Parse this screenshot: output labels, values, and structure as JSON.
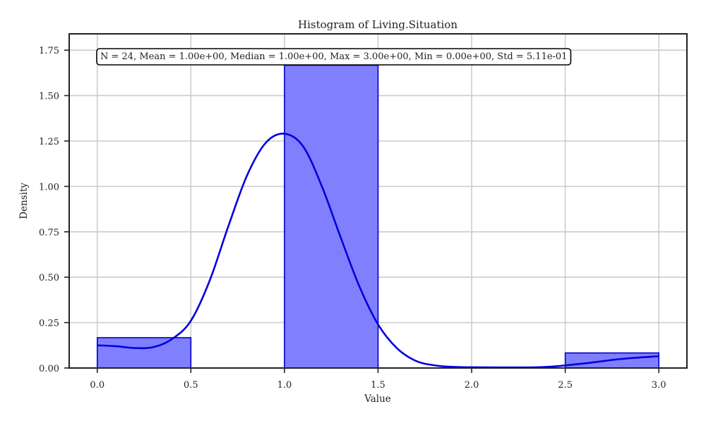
{
  "chart_data": {
    "type": "bar",
    "title": "Histogram of Living.Situation",
    "xlabel": "Value",
    "ylabel": "Density",
    "xlim": [
      -0.15,
      3.15
    ],
    "ylim": [
      0,
      1.84
    ],
    "x_ticks": [
      "0.0",
      "0.5",
      "1.0",
      "1.5",
      "2.0",
      "2.5",
      "3.0"
    ],
    "y_ticks": [
      "0.00",
      "0.25",
      "0.50",
      "0.75",
      "1.00",
      "1.25",
      "1.50",
      "1.75"
    ],
    "grid": true,
    "bins": [
      {
        "start": 0.0,
        "end": 0.5,
        "density": 0.167
      },
      {
        "start": 1.0,
        "end": 1.5,
        "density": 1.667
      },
      {
        "start": 2.5,
        "end": 3.0,
        "density": 0.083
      }
    ],
    "kde": {
      "x": [
        0.0,
        0.1,
        0.2,
        0.3,
        0.4,
        0.5,
        0.6,
        0.7,
        0.8,
        0.9,
        1.0,
        1.1,
        1.2,
        1.3,
        1.4,
        1.5,
        1.6,
        1.7,
        1.8,
        1.9,
        2.0,
        2.2,
        2.4,
        2.6,
        2.8,
        3.0
      ],
      "y": [
        0.125,
        0.12,
        0.11,
        0.115,
        0.16,
        0.26,
        0.48,
        0.78,
        1.06,
        1.24,
        1.29,
        1.22,
        1.0,
        0.72,
        0.45,
        0.24,
        0.11,
        0.04,
        0.015,
        0.006,
        0.004,
        0.003,
        0.006,
        0.025,
        0.05,
        0.065
      ]
    },
    "stats_text": "N = 24, Mean = 1.00e+00, Median = 1.00e+00, Max = 3.00e+00, Min = 0.00e+00, Std = 5.11e-01",
    "colors": {
      "bar_fill": "#8080ff",
      "bar_edge": "#0000cc",
      "kde_line": "#0000dd",
      "grid": "#cccccc",
      "axes": "#222222"
    }
  }
}
